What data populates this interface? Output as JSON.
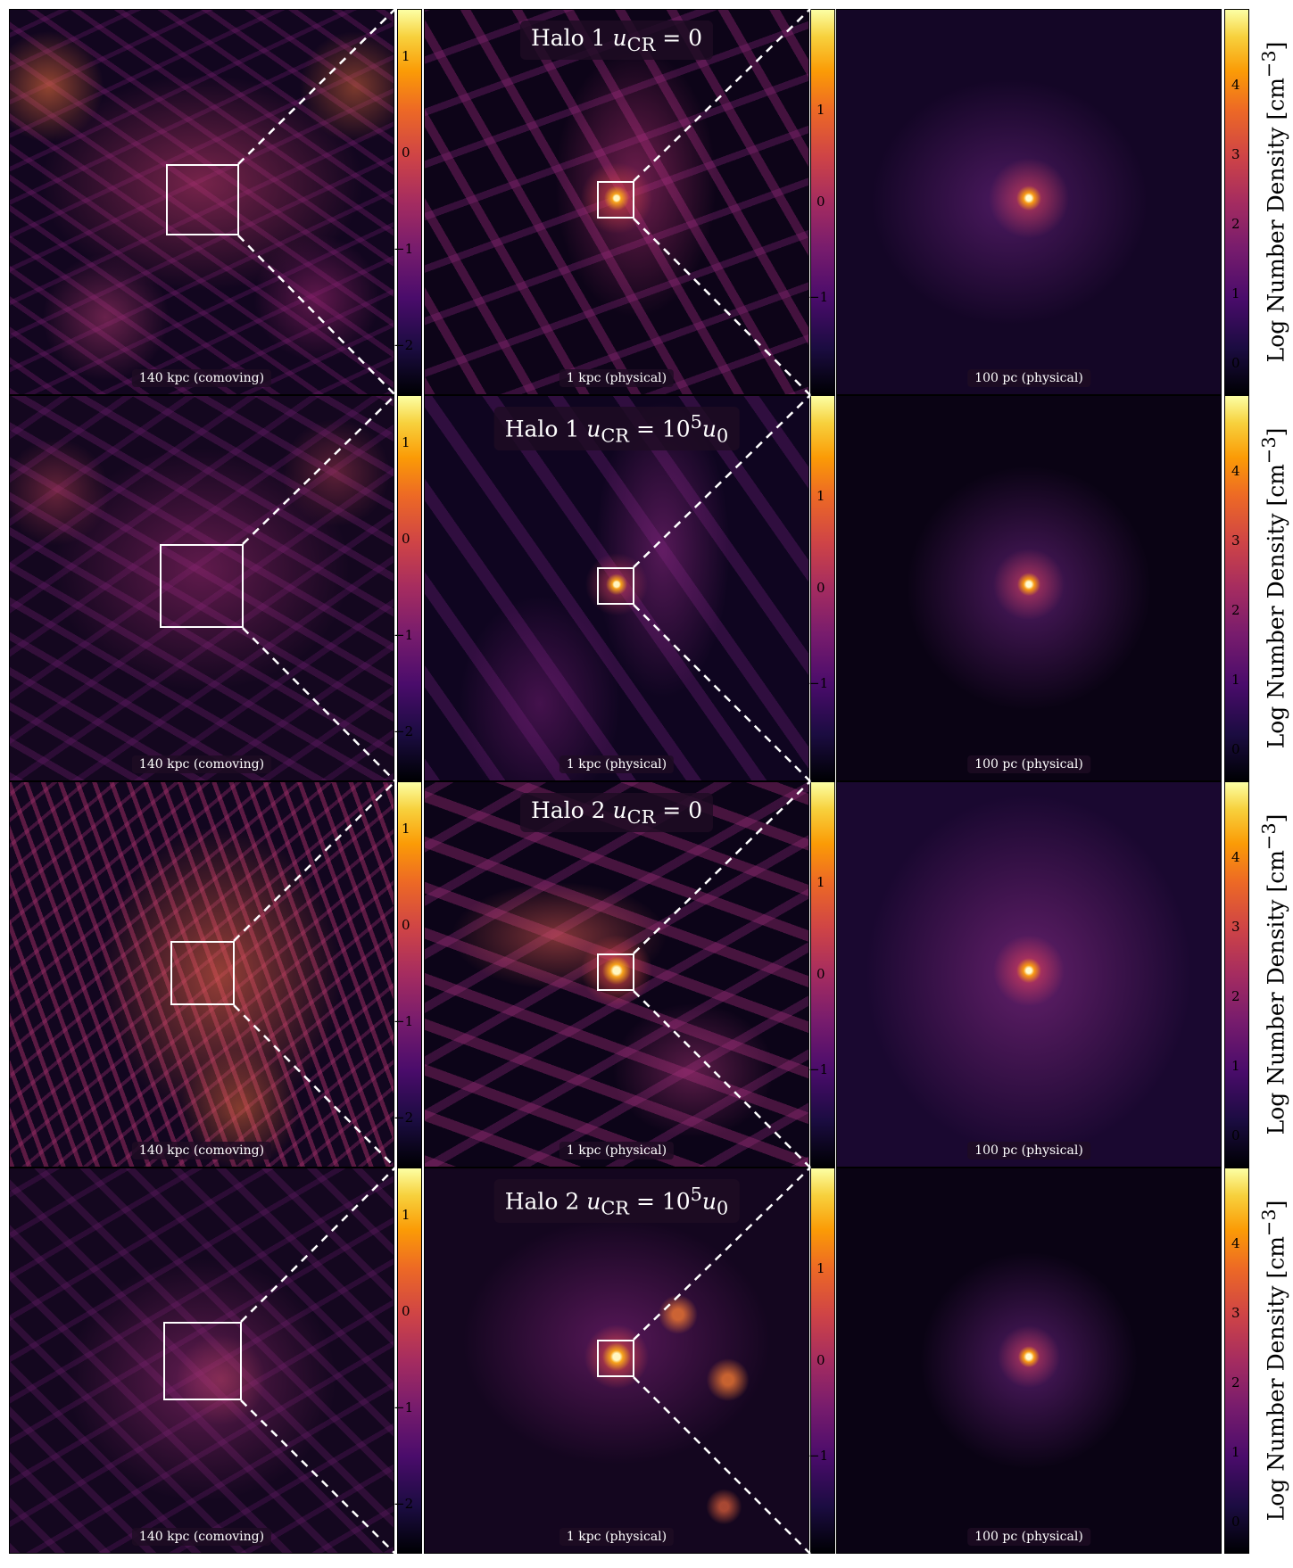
{
  "figure": {
    "colorbar_label": "Log Number Density [cm",
    "colorbar_label_sup": "−3",
    "colormap": [
      "#000004",
      "#1b0c41",
      "#4a0c6b",
      "#781c6d",
      "#a52c60",
      "#cf4446",
      "#ed6925",
      "#fb9b06",
      "#f7d13d",
      "#fcffa4"
    ],
    "large_scale_label": "140 kpc (comoving)",
    "mid_scale_label": "1 kpc (physical)",
    "small_scale_label": "100 pc (physical)",
    "cbar1_ticks": [
      "1",
      "0",
      "−1",
      "−2"
    ],
    "cbar2_ticks": [
      "1",
      "0",
      "−1"
    ],
    "cbar3_ticks": [
      "4",
      "3",
      "2",
      "1",
      "0"
    ]
  },
  "rows": [
    {
      "halo": "Halo 1",
      "u_label": "u",
      "u_sub": "CR",
      "u_value": " = 0"
    },
    {
      "halo": "Halo 1",
      "u_label": "u",
      "u_sub": "CR",
      "u_value": " = 10",
      "u_sup": "5",
      "u_tail": "u",
      "u_tail_sub": "0"
    },
    {
      "halo": "Halo 2",
      "u_label": "u",
      "u_sub": "CR",
      "u_value": " = 0"
    },
    {
      "halo": "Halo 2",
      "u_label": "u",
      "u_sub": "CR",
      "u_value": " = 10",
      "u_sup": "5",
      "u_tail": "u",
      "u_tail_sub": "0"
    }
  ]
}
